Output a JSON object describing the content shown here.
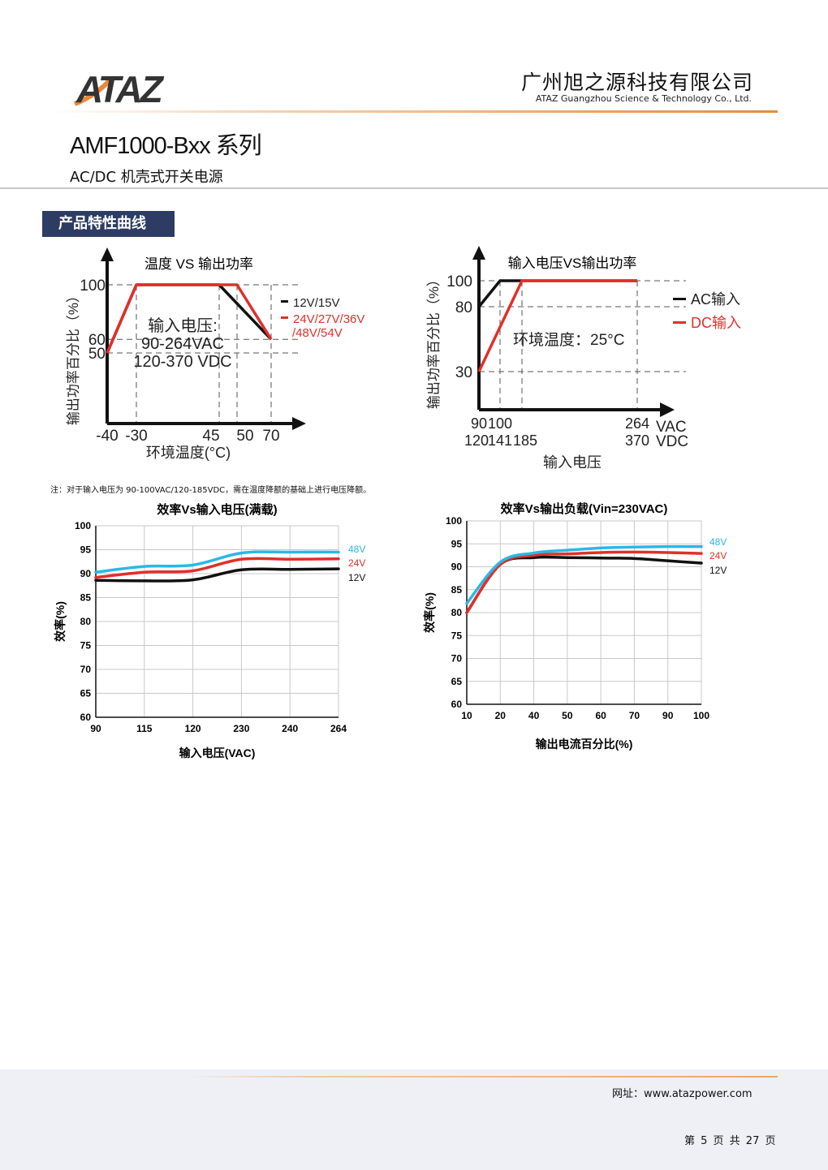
{
  "header": {
    "logo_text": "ATAZ",
    "company_cn": "广州旭之源科技有限公司",
    "company_en": "ATAZ Guangzhou Science & Technology Co., Ltd."
  },
  "title": "AMF1000-Bxx 系列",
  "subtitle": "AC/DC 机壳式开关电源",
  "section_title": "产品特性曲线",
  "note": "注：对于输入电压为 90-100VAC/120-185VDC，需在温度降额的基础上进行电压降额。",
  "colors": {
    "black": "#111111",
    "red": "#e0302a",
    "cyan": "#2ab8e6",
    "navy": "#2d3c63",
    "orange": "#e88a3c"
  },
  "chart_data": [
    {
      "type": "line",
      "title": "温度 VS 输出功率",
      "xlabel": "环境温度(°C)",
      "ylabel": "输出功率百分比（%）",
      "x_ticks": [
        "-40",
        "-30",
        "45",
        "50",
        "70"
      ],
      "y_ticks": [
        "100",
        "60",
        "50"
      ],
      "annotation": [
        "输入电压:",
        "90-264VAC",
        "120-370 VDC"
      ],
      "series": [
        {
          "name": "12V/15V",
          "color": "#111111",
          "x": [
            -40,
            -30,
            45,
            70
          ],
          "y": [
            50,
            100,
            100,
            60
          ]
        },
        {
          "name": "24V/27V/36V /48V/54V",
          "legend_lines": [
            "24V/27V/36V",
            "/48V/54V"
          ],
          "color": "#e0302a",
          "x": [
            -40,
            -30,
            50,
            70
          ],
          "y": [
            50,
            100,
            100,
            60
          ]
        }
      ]
    },
    {
      "type": "line",
      "title": "输入电压VS输出功率",
      "xlabel": "输入电压",
      "ylabel": "输出功率百分比（%）",
      "x_ticks_vac": [
        "90",
        "100",
        "264"
      ],
      "x_ticks_vdc": [
        "120",
        "141",
        "185",
        "370"
      ],
      "x_unit_vac": "VAC",
      "x_unit_vdc": "VDC",
      "y_ticks": [
        "100",
        "80",
        "30"
      ],
      "annotation": "环境温度：25°C",
      "series": [
        {
          "name": "AC输入",
          "color": "#111111",
          "x": [
            90,
            100,
            264
          ],
          "y": [
            80,
            100,
            100
          ]
        },
        {
          "name": "DC输入",
          "color": "#e0302a",
          "x": [
            120,
            185,
            370
          ],
          "y": [
            30,
            100,
            100
          ]
        }
      ]
    },
    {
      "type": "line",
      "title": "效率Vs输入电压(满载)",
      "xlabel": "输入电压(VAC)",
      "ylabel": "效率(%)",
      "categories": [
        "90",
        "115",
        "120",
        "230",
        "240",
        "264"
      ],
      "ylim": [
        60,
        100
      ],
      "y_ticks": [
        "100",
        "95",
        "90",
        "85",
        "80",
        "75",
        "70",
        "65",
        "60"
      ],
      "grid": true,
      "series": [
        {
          "name": "48V",
          "color": "#2ab8e6",
          "values": [
            90.3,
            91.5,
            91.8,
            94.3,
            94.5,
            94.5
          ]
        },
        {
          "name": "24V",
          "color": "#e0302a",
          "values": [
            89.2,
            90.3,
            90.6,
            93.0,
            93.0,
            93.1
          ]
        },
        {
          "name": "12V",
          "color": "#111111",
          "values": [
            88.6,
            88.5,
            88.7,
            90.8,
            90.9,
            91.0
          ]
        }
      ]
    },
    {
      "type": "line",
      "title": "效率Vs输出负载(Vin=230VAC)",
      "xlabel": "输出电流百分比(%)",
      "ylabel": "效率(%)",
      "categories": [
        "10",
        "20",
        "40",
        "50",
        "60",
        "70",
        "90",
        "100"
      ],
      "ylim": [
        60,
        100
      ],
      "y_ticks": [
        "100",
        "95",
        "90",
        "85",
        "80",
        "75",
        "70",
        "65",
        "60"
      ],
      "grid": true,
      "series": [
        {
          "name": "48V",
          "color": "#2ab8e6",
          "values": [
            82.0,
            91.0,
            93.0,
            93.6,
            94.1,
            94.3,
            94.4,
            94.4
          ]
        },
        {
          "name": "24V",
          "color": "#e0302a",
          "values": [
            80.0,
            90.5,
            92.5,
            92.8,
            93.1,
            93.2,
            93.1,
            92.9
          ]
        },
        {
          "name": "12V",
          "color": "#111111",
          "values": [
            80.0,
            90.5,
            92.0,
            92.0,
            91.9,
            91.8,
            91.3,
            90.8
          ]
        }
      ]
    }
  ],
  "footer": {
    "website": "网址：www.atazpower.com",
    "page_number": "第 5 页 共 27 页"
  }
}
